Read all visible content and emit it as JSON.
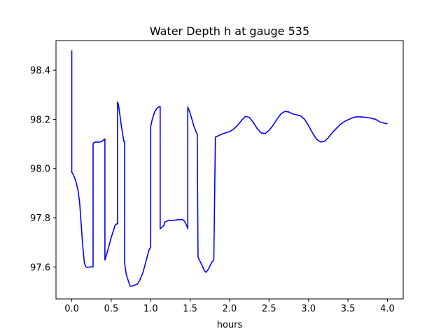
{
  "chart_data": {
    "type": "line",
    "title": "Water Depth h at gauge 535",
    "xlabel": "hours",
    "ylabel": "",
    "xlim": [
      -0.2,
      4.2
    ],
    "ylim": [
      97.47,
      98.52
    ],
    "x_ticks": [
      0.0,
      0.5,
      1.0,
      1.5,
      2.0,
      2.5,
      3.0,
      3.5,
      4.0
    ],
    "x_tick_labels": [
      "0.0",
      "0.5",
      "1.0",
      "1.5",
      "2.0",
      "2.5",
      "3.0",
      "3.5",
      "4.0"
    ],
    "y_ticks": [
      97.6,
      97.8,
      98.0,
      98.2,
      98.4
    ],
    "y_tick_labels": [
      "97.6",
      "97.8",
      "98.0",
      "98.2",
      "98.4"
    ],
    "grid": false,
    "legend": "none",
    "line_color": "#0000ff",
    "series": [
      {
        "x": [
          0.0,
          0.0,
          0.0,
          0.02,
          0.05,
          0.08,
          0.1,
          0.12,
          0.14,
          0.16,
          0.18,
          0.2,
          0.23,
          0.26,
          0.27,
          0.27,
          0.28,
          0.3,
          0.33,
          0.36,
          0.38,
          0.41,
          0.42,
          0.42,
          0.45,
          0.5,
          0.55,
          0.57,
          0.58,
          0.58,
          0.59,
          0.6,
          0.63,
          0.66,
          0.67,
          0.67,
          0.69,
          0.72,
          0.74,
          0.76,
          0.78,
          0.8,
          0.83,
          0.86,
          0.88,
          0.9,
          0.93,
          0.95,
          0.98,
          1.0,
          1.0,
          1.02,
          1.05,
          1.08,
          1.1,
          1.12,
          1.12,
          1.14,
          1.17,
          1.18,
          1.2,
          1.23,
          1.25,
          1.3,
          1.35,
          1.4,
          1.43,
          1.46,
          1.47,
          1.47,
          1.5,
          1.55,
          1.58,
          1.59,
          1.6,
          1.63,
          1.66,
          1.68,
          1.7,
          1.73,
          1.76,
          1.78,
          1.79,
          1.8,
          1.82,
          1.85,
          1.9,
          1.95,
          2.0,
          2.05,
          2.1,
          2.15,
          2.2,
          2.25,
          2.3,
          2.35,
          2.4,
          2.45,
          2.5,
          2.55,
          2.6,
          2.65,
          2.7,
          2.75,
          2.8,
          2.85,
          2.9,
          2.95,
          3.0,
          3.05,
          3.1,
          3.15,
          3.2,
          3.25,
          3.3,
          3.35,
          3.4,
          3.45,
          3.5,
          3.55,
          3.6,
          3.65,
          3.7,
          3.75,
          3.8,
          3.85,
          3.9,
          3.95,
          4.0
        ],
        "y": [
          98.48,
          97.985,
          97.985,
          97.975,
          97.95,
          97.91,
          97.86,
          97.77,
          97.68,
          97.615,
          97.6,
          97.598,
          97.6,
          97.6,
          97.6,
          98.1,
          98.105,
          98.108,
          98.107,
          98.108,
          98.11,
          98.118,
          98.12,
          97.628,
          97.66,
          97.72,
          97.77,
          97.775,
          97.775,
          98.27,
          98.262,
          98.24,
          98.17,
          98.11,
          98.11,
          97.615,
          97.57,
          97.54,
          97.522,
          97.521,
          97.525,
          97.526,
          97.53,
          97.545,
          97.56,
          97.575,
          97.61,
          97.635,
          97.67,
          97.68,
          98.17,
          98.2,
          98.23,
          98.245,
          98.25,
          98.252,
          97.755,
          97.76,
          97.77,
          97.783,
          97.785,
          97.79,
          97.789,
          97.79,
          97.792,
          97.793,
          97.785,
          97.765,
          97.755,
          98.25,
          98.225,
          98.17,
          98.145,
          98.14,
          97.64,
          97.62,
          97.6,
          97.585,
          97.578,
          97.59,
          97.61,
          97.622,
          97.625,
          97.63,
          98.128,
          98.132,
          98.14,
          98.145,
          98.15,
          98.16,
          98.175,
          98.195,
          98.212,
          98.208,
          98.188,
          98.162,
          98.145,
          98.142,
          98.155,
          98.175,
          98.2,
          98.222,
          98.232,
          98.23,
          98.222,
          98.218,
          98.214,
          98.2,
          98.175,
          98.145,
          98.12,
          98.108,
          98.11,
          98.125,
          98.145,
          98.162,
          98.178,
          98.19,
          98.198,
          98.205,
          98.21,
          98.21,
          98.209,
          98.207,
          98.204,
          98.2,
          98.19,
          98.185,
          98.182
        ]
      }
    ]
  }
}
